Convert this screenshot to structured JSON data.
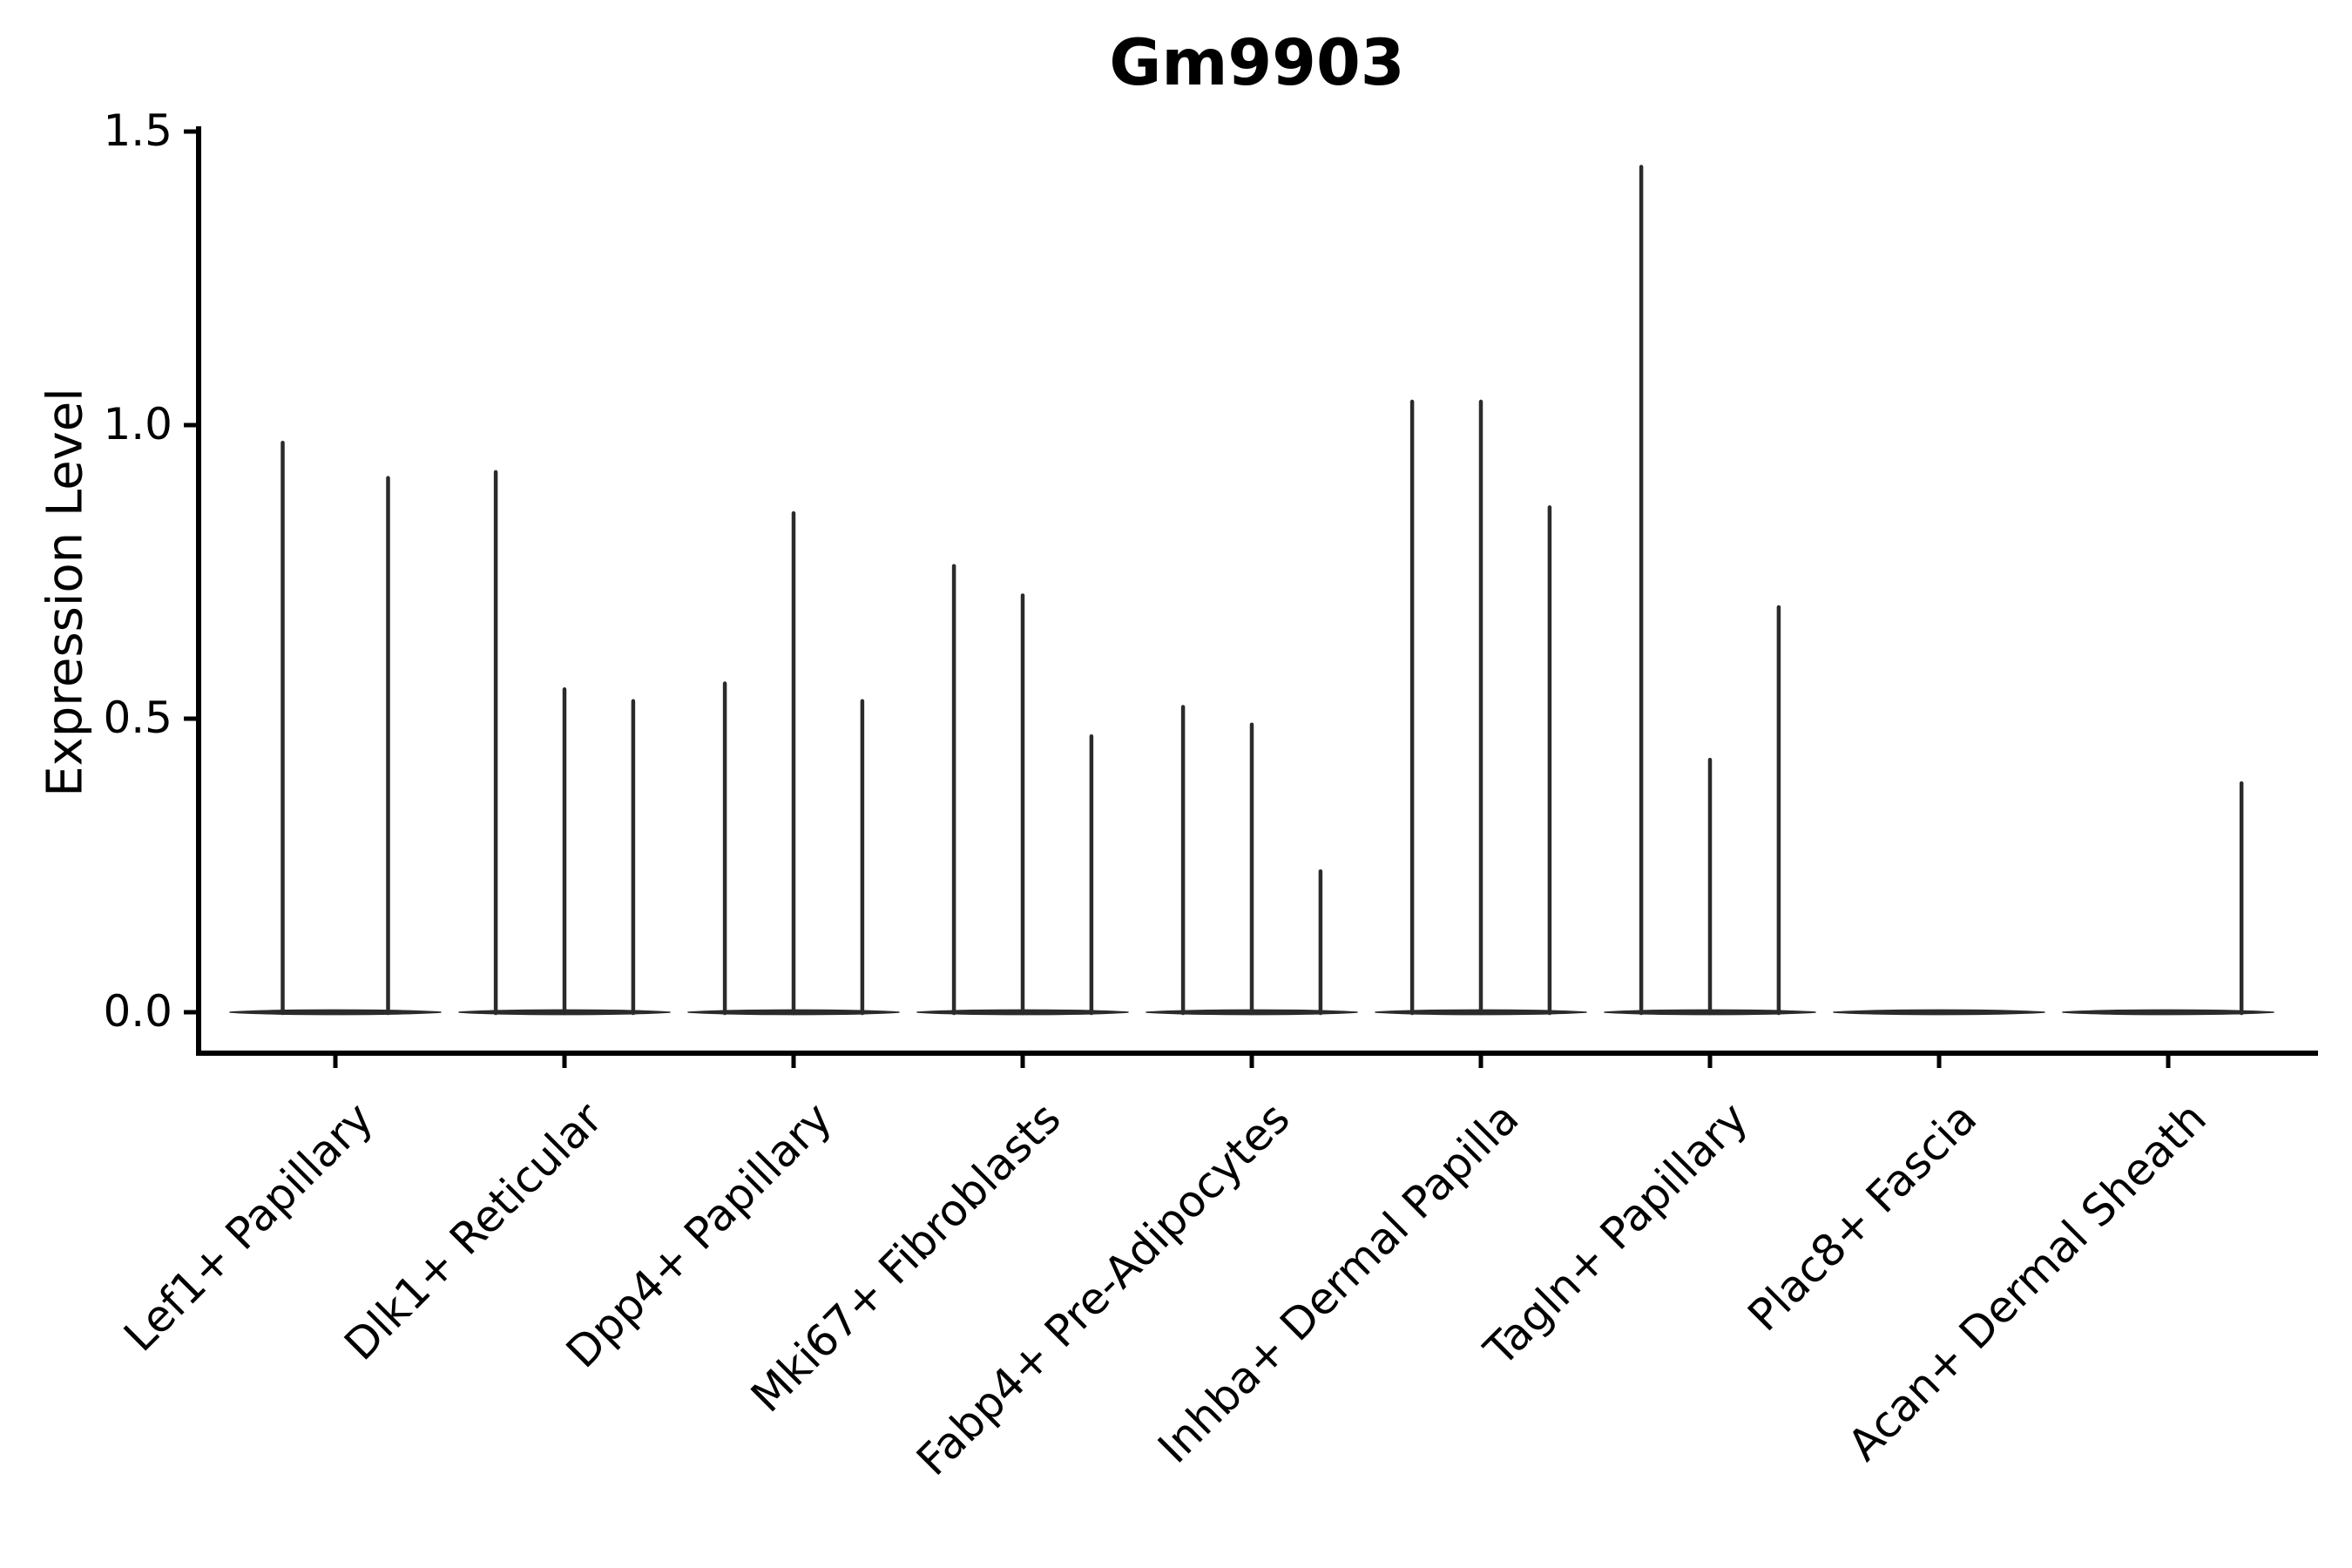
{
  "figure": {
    "title": "Gm9903",
    "y_axis_label": "Expression Level"
  },
  "colors": {
    "violin": "#2b2b2b",
    "axis": "#000000",
    "text": "#000000",
    "background": "#ffffff"
  },
  "chart_data": {
    "type": "violin",
    "title": "Gm9903",
    "ylabel": "Expression Level",
    "xlabel": "",
    "ylim": [
      0.0,
      1.5
    ],
    "yticks": [
      0.0,
      0.5,
      1.0,
      1.5
    ],
    "ytick_labels": [
      "0.0",
      "0.5",
      "1.0",
      "1.5"
    ],
    "grid": false,
    "legend": null,
    "x_tick_rotation": 45,
    "categories": [
      "Lef1+ Papillary",
      "Dlk1+ Reticular",
      "Dpp4+ Papillary",
      "Mki67+ Fibroblasts",
      "Fabp4+ Pre-Adipocytes",
      "Inhba+ Dermal Papilla",
      "Tagln+ Papillary",
      "Plac8+ Fascia",
      "Acan+ Dermal Sheath"
    ],
    "series": [
      {
        "category": "Lef1+ Papillary",
        "main_mass_value": 0.0,
        "spikes": [
          {
            "dx": -0.23,
            "value": 0.97
          },
          {
            "dx": 0.23,
            "value": 0.91
          }
        ]
      },
      {
        "category": "Dlk1+ Reticular",
        "main_mass_value": 0.0,
        "spikes": [
          {
            "dx": -0.3,
            "value": 0.92
          },
          {
            "dx": 0.0,
            "value": 0.55
          },
          {
            "dx": 0.3,
            "value": 0.53
          }
        ]
      },
      {
        "category": "Dpp4+ Papillary",
        "main_mass_value": 0.0,
        "spikes": [
          {
            "dx": -0.3,
            "value": 0.56
          },
          {
            "dx": 0.0,
            "value": 0.85
          },
          {
            "dx": 0.3,
            "value": 0.53
          }
        ]
      },
      {
        "category": "Mki67+ Fibroblasts",
        "main_mass_value": 0.0,
        "spikes": [
          {
            "dx": -0.3,
            "value": 0.76
          },
          {
            "dx": 0.0,
            "value": 0.71
          },
          {
            "dx": 0.3,
            "value": 0.47
          }
        ]
      },
      {
        "category": "Fabp4+ Pre-Adipocytes",
        "main_mass_value": 0.0,
        "spikes": [
          {
            "dx": -0.3,
            "value": 0.52
          },
          {
            "dx": 0.0,
            "value": 0.49
          },
          {
            "dx": 0.3,
            "value": 0.24
          }
        ]
      },
      {
        "category": "Inhba+ Dermal Papilla",
        "main_mass_value": 0.0,
        "spikes": [
          {
            "dx": -0.3,
            "value": 1.04
          },
          {
            "dx": 0.0,
            "value": 1.04
          },
          {
            "dx": 0.3,
            "value": 0.86
          }
        ]
      },
      {
        "category": "Tagln+ Papillary",
        "main_mass_value": 0.0,
        "spikes": [
          {
            "dx": -0.3,
            "value": 1.44
          },
          {
            "dx": 0.0,
            "value": 0.43
          },
          {
            "dx": 0.3,
            "value": 0.69
          }
        ]
      },
      {
        "category": "Plac8+ Fascia",
        "main_mass_value": 0.0,
        "spikes": []
      },
      {
        "category": "Acan+ Dermal Sheath",
        "main_mass_value": 0.0,
        "spikes": [
          {
            "dx": 0.32,
            "value": 0.39
          }
        ]
      }
    ]
  }
}
